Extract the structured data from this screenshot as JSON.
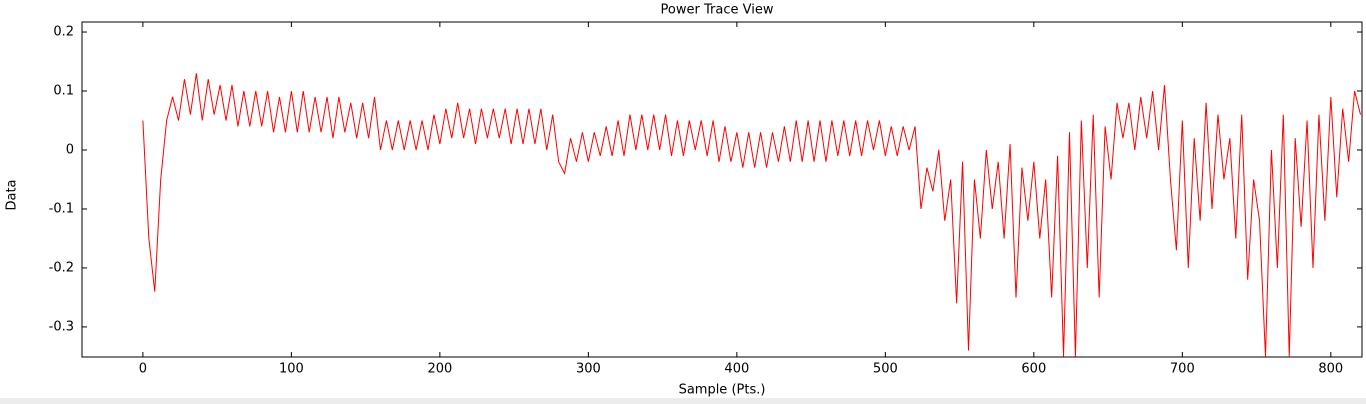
{
  "chart_data": {
    "type": "line",
    "title": "Power Trace View",
    "x_label": "Sample (Pts.)",
    "y_label": "Data",
    "xlim": [
      -41,
      821
    ],
    "ylim": [
      -0.351,
      0.217
    ],
    "xticks": [
      0,
      100,
      200,
      300,
      400,
      500,
      600,
      700,
      800
    ],
    "yticks": [
      -0.3,
      -0.2,
      -0.1,
      0,
      0.1,
      0.2
    ],
    "x": [
      0,
      4,
      8,
      12,
      16,
      20,
      24,
      28,
      32,
      36,
      40,
      44,
      48,
      52,
      56,
      60,
      64,
      68,
      72,
      76,
      80,
      84,
      88,
      92,
      96,
      100,
      104,
      108,
      112,
      116,
      120,
      124,
      128,
      132,
      136,
      140,
      144,
      148,
      152,
      156,
      160,
      164,
      168,
      172,
      176,
      180,
      184,
      188,
      192,
      196,
      200,
      204,
      208,
      212,
      216,
      220,
      224,
      228,
      232,
      236,
      240,
      244,
      248,
      252,
      256,
      260,
      264,
      268,
      272,
      276,
      280,
      284,
      288,
      292,
      296,
      300,
      304,
      308,
      312,
      316,
      320,
      324,
      328,
      332,
      336,
      340,
      344,
      348,
      352,
      356,
      360,
      364,
      368,
      372,
      376,
      380,
      384,
      388,
      392,
      396,
      400,
      404,
      408,
      412,
      416,
      420,
      424,
      428,
      432,
      436,
      440,
      444,
      448,
      452,
      456,
      460,
      464,
      468,
      472,
      476,
      480,
      484,
      488,
      492,
      496,
      500,
      504,
      508,
      512,
      516,
      520,
      524,
      528,
      532,
      536,
      540,
      544,
      548,
      552,
      556,
      560,
      564,
      568,
      572,
      576,
      580,
      584,
      588,
      592,
      596,
      600,
      604,
      608,
      612,
      616,
      620,
      624,
      628,
      632,
      636,
      640,
      644,
      648,
      652,
      656,
      660,
      664,
      668,
      672,
      676,
      680,
      684,
      688,
      692,
      696,
      700,
      704,
      708,
      712,
      716,
      720,
      724,
      728,
      732,
      736,
      740,
      744,
      748,
      752,
      756,
      760,
      764,
      768,
      772,
      776,
      780,
      784,
      788,
      792,
      796,
      800,
      804,
      808,
      812,
      816,
      820
    ],
    "series": [
      {
        "color": "#ff0000",
        "values": [
          0.05,
          -0.15,
          -0.24,
          -0.05,
          0.05,
          0.09,
          0.05,
          0.12,
          0.06,
          0.13,
          0.05,
          0.12,
          0.06,
          0.11,
          0.05,
          0.11,
          0.04,
          0.1,
          0.04,
          0.1,
          0.04,
          0.1,
          0.03,
          0.09,
          0.03,
          0.1,
          0.03,
          0.1,
          0.03,
          0.09,
          0.03,
          0.09,
          0.02,
          0.09,
          0.03,
          0.08,
          0.02,
          0.08,
          0.02,
          0.09,
          0.0,
          0.05,
          0.0,
          0.05,
          0.0,
          0.05,
          0.0,
          0.05,
          0.0,
          0.06,
          0.01,
          0.07,
          0.02,
          0.08,
          0.02,
          0.07,
          0.01,
          0.07,
          0.02,
          0.07,
          0.02,
          0.07,
          0.01,
          0.07,
          0.01,
          0.07,
          0.01,
          0.07,
          0.0,
          0.06,
          -0.02,
          -0.04,
          0.02,
          -0.02,
          0.03,
          -0.02,
          0.03,
          -0.01,
          0.04,
          -0.01,
          0.05,
          -0.01,
          0.06,
          0.0,
          0.06,
          0.0,
          0.06,
          0.0,
          0.06,
          -0.01,
          0.05,
          -0.01,
          0.05,
          0.0,
          0.05,
          -0.01,
          0.05,
          -0.02,
          0.04,
          -0.02,
          0.03,
          -0.03,
          0.03,
          -0.03,
          0.03,
          -0.03,
          0.03,
          -0.02,
          0.04,
          -0.02,
          0.05,
          -0.02,
          0.05,
          -0.02,
          0.05,
          -0.02,
          0.05,
          -0.01,
          0.05,
          -0.01,
          0.05,
          -0.01,
          0.05,
          0.0,
          0.05,
          -0.01,
          0.04,
          -0.01,
          0.04,
          0.0,
          0.04,
          -0.1,
          -0.03,
          -0.07,
          0.0,
          -0.12,
          -0.05,
          -0.26,
          -0.02,
          -0.34,
          -0.05,
          -0.15,
          0.0,
          -0.1,
          -0.02,
          -0.15,
          0.01,
          -0.25,
          -0.03,
          -0.12,
          -0.02,
          -0.15,
          -0.05,
          -0.25,
          -0.01,
          -0.35,
          0.03,
          -0.35,
          0.05,
          -0.2,
          0.06,
          -0.25,
          0.04,
          -0.05,
          0.08,
          0.02,
          0.08,
          0.0,
          0.09,
          0.02,
          0.1,
          0.0,
          0.11,
          -0.05,
          -0.17,
          0.05,
          -0.2,
          0.02,
          -0.12,
          0.08,
          -0.1,
          0.06,
          -0.05,
          0.02,
          -0.15,
          0.06,
          -0.22,
          -0.05,
          -0.12,
          -0.35,
          0.0,
          -0.2,
          0.06,
          -0.35,
          0.02,
          -0.13,
          0.05,
          -0.2,
          0.06,
          -0.12,
          0.09,
          -0.08,
          0.07,
          -0.02,
          0.1,
          0.06
        ]
      }
    ]
  }
}
